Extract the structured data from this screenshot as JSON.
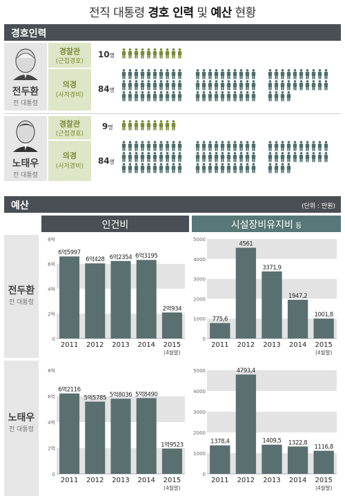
{
  "title": {
    "part1": "전직 대통령 ",
    "bold1": "경호 인력",
    "part2": " 및 ",
    "bold2": "예산",
    "part3": " 현황"
  },
  "security": {
    "section_label": "경호인력",
    "people": [
      {
        "name": "전두환",
        "sub": "전 대통령",
        "rows": [
          {
            "role": "경찰관",
            "role_sub": "(근접경호)",
            "count": "10",
            "count_unit": "명",
            "value": 10
          },
          {
            "role": "의경",
            "role_sub": "(사저경비)",
            "count": "84",
            "count_unit": "명",
            "value": 84
          }
        ]
      },
      {
        "name": "노태우",
        "sub": "전 대통령",
        "rows": [
          {
            "role": "경찰관",
            "role_sub": "(근접경호)",
            "count": "9",
            "count_unit": "명",
            "value": 9
          },
          {
            "role": "의경",
            "role_sub": "(사저경비)",
            "count": "84",
            "count_unit": "명",
            "value": 84
          }
        ]
      }
    ]
  },
  "budget": {
    "section_label": "예산",
    "unit_note": "(단위 : 만원)",
    "chart1_title": "인건비",
    "chart2_title": "시설장비유지비",
    "chart2_title_small": " 등",
    "people": [
      {
        "name": "전두환",
        "sub": "전 대통령"
      },
      {
        "name": "노태우",
        "sub": "전 대통령"
      }
    ]
  },
  "colors": {
    "section_bar": "#4a4f55",
    "chart1_header": "#4a4f55",
    "chart2_header": "#587777",
    "bar": "#5a7070",
    "figure_green": "#7b8a3a",
    "figure_teal": "#4e6e6e"
  },
  "chart_data": [
    {
      "type": "bar",
      "title": "인건비",
      "person": "전두환",
      "categories": [
        "2011",
        "2012",
        "2013",
        "2014",
        "2015"
      ],
      "category_sublabels": [
        "",
        "",
        "",
        "",
        "(4월말)"
      ],
      "values": [
        65997,
        60428,
        62354,
        63195,
        20934
      ],
      "data_labels": [
        "6억5997",
        "6억428",
        "6억2354",
        "6억3195",
        "2억934"
      ],
      "ylim": [
        0,
        80000
      ],
      "yticks": [
        0,
        20000,
        40000,
        60000,
        80000
      ],
      "ytick_labels": [
        "0",
        "2억",
        "4억",
        "6억",
        "8억"
      ]
    },
    {
      "type": "bar",
      "title": "시설장비유지비 등",
      "person": "전두환",
      "categories": [
        "2011",
        "2012",
        "2013",
        "2014",
        "2015"
      ],
      "category_sublabels": [
        "",
        "",
        "",
        "",
        "(4월말)"
      ],
      "values": [
        775.6,
        4561,
        3371.9,
        1947.2,
        1001.8
      ],
      "data_labels": [
        "775,6",
        "4561",
        "3371,9",
        "1947,2",
        "1001,8"
      ],
      "ylim": [
        0,
        5000
      ],
      "yticks": [
        0,
        1000,
        2000,
        3000,
        4000,
        5000
      ],
      "ytick_labels": [
        "0",
        "1000",
        "2000",
        "3000",
        "4000",
        "5000"
      ]
    },
    {
      "type": "bar",
      "title": "인건비",
      "person": "노태우",
      "categories": [
        "2011",
        "2012",
        "2013",
        "2014",
        "2015"
      ],
      "category_sublabels": [
        "",
        "",
        "",
        "",
        "(4월말)"
      ],
      "values": [
        62116,
        55785,
        58036,
        58490,
        19523
      ],
      "data_labels": [
        "6억2116",
        "5억5785",
        "5억8036",
        "5억8490",
        "1억9523"
      ],
      "ylim": [
        0,
        80000
      ],
      "yticks": [
        0,
        20000,
        40000,
        60000,
        80000
      ],
      "ytick_labels": [
        "0",
        "2억",
        "4억",
        "6억",
        "8억"
      ]
    },
    {
      "type": "bar",
      "title": "시설장비유지비 등",
      "person": "노태우",
      "categories": [
        "2011",
        "2012",
        "2013",
        "2014",
        "2015"
      ],
      "category_sublabels": [
        "",
        "",
        "",
        "",
        "(4월말)"
      ],
      "values": [
        1378.4,
        4793.4,
        1409.5,
        1322.8,
        1116.8
      ],
      "data_labels": [
        "1378,4",
        "4793,4",
        "1409,5",
        "1322,8",
        "1116,8"
      ],
      "ylim": [
        0,
        5000
      ],
      "yticks": [
        0,
        1000,
        2000,
        3000,
        4000,
        5000
      ],
      "ytick_labels": [
        "0",
        "1000",
        "2000",
        "3000",
        "4000",
        "5000"
      ]
    }
  ]
}
